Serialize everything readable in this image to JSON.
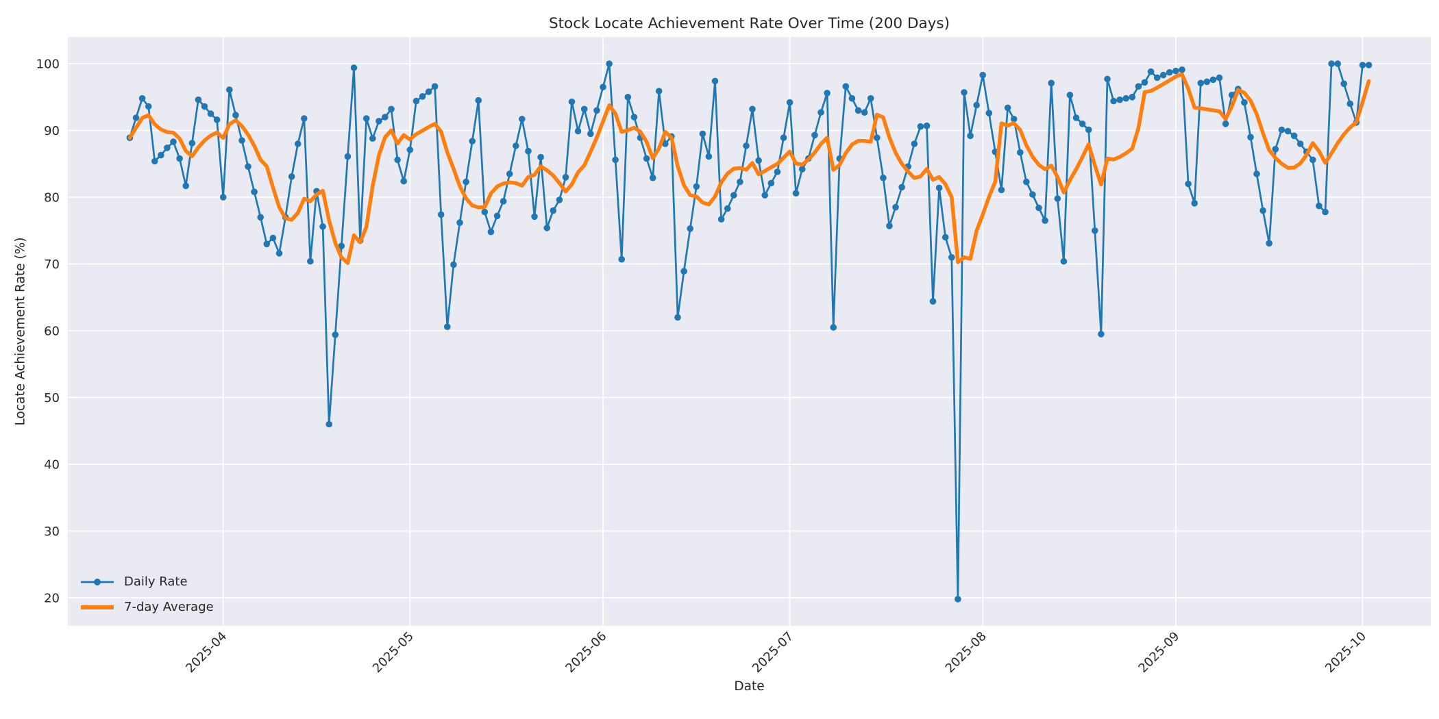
{
  "title": "Stock Locate Achievement Rate Over Time (200 Days)",
  "xlabel": "Date",
  "ylabel": "Locate Achievement Rate (%)",
  "legend": {
    "daily": "Daily Rate",
    "avg": "7-day Average"
  },
  "colors": {
    "daily": "#1f77b4",
    "avg": "#ff7f0e",
    "plot_bg": "#eaeaf2",
    "grid": "#ffffff",
    "text": "#262626",
    "fig_bg": "#ffffff"
  },
  "chart_data": {
    "type": "line",
    "title": "Stock Locate Achievement Rate Over Time (200 Days)",
    "xlabel": "Date",
    "ylabel": "Locate Achievement Rate (%)",
    "x_start_date": "2025-03-17",
    "n_days": 200,
    "ylim": [
      15.8,
      104.0
    ],
    "yticks": [
      20,
      30,
      40,
      50,
      60,
      70,
      80,
      90,
      100
    ],
    "xticks": [
      {
        "label": "2025-04",
        "day_index": 15
      },
      {
        "label": "2025-05",
        "day_index": 45
      },
      {
        "label": "2025-06",
        "day_index": 76
      },
      {
        "label": "2025-07",
        "day_index": 106
      },
      {
        "label": "2025-08",
        "day_index": 137
      },
      {
        "label": "2025-09",
        "day_index": 168
      },
      {
        "label": "2025-10",
        "day_index": 198
      }
    ],
    "grid": true,
    "legend_position": "lower left",
    "series": [
      {
        "name": "Daily Rate",
        "marker": "o",
        "values": [
          88.9,
          91.9,
          94.8,
          93.6,
          85.4,
          86.3,
          87.4,
          88.3,
          85.8,
          81.7,
          88.1,
          94.6,
          93.6,
          92.5,
          91.6,
          80.0,
          96.1,
          92.3,
          88.5,
          84.6,
          80.8,
          77.0,
          73.0,
          73.9,
          71.6,
          77.0,
          83.1,
          88.0,
          91.8,
          70.4,
          80.9,
          75.6,
          46.0,
          59.4,
          72.7,
          86.1,
          99.4,
          73.5,
          91.8,
          88.8,
          91.4,
          92.0,
          93.2,
          85.6,
          82.4,
          87.1,
          94.4,
          95.1,
          95.8,
          96.6,
          77.4,
          60.6,
          69.9,
          76.2,
          82.3,
          88.4,
          94.5,
          77.8,
          74.8,
          77.2,
          79.4,
          83.5,
          87.7,
          91.7,
          86.9,
          77.1,
          86.0,
          75.4,
          78.0,
          79.6,
          83.0,
          94.3,
          89.9,
          93.2,
          89.5,
          93.0,
          96.5,
          100.0,
          85.6,
          70.7,
          95.0,
          92.0,
          88.9,
          85.8,
          82.9,
          95.9,
          88.0,
          89.1,
          62.0,
          68.9,
          75.3,
          81.6,
          89.5,
          86.1,
          97.4,
          76.7,
          78.3,
          80.3,
          82.3,
          87.7,
          93.2,
          85.5,
          80.3,
          82.1,
          83.8,
          88.9,
          94.2,
          80.6,
          84.2,
          85.8,
          89.3,
          92.7,
          95.6,
          60.5,
          85.8,
          96.6,
          94.8,
          93.0,
          92.7,
          94.8,
          88.9,
          82.9,
          75.7,
          78.5,
          81.5,
          84.6,
          88.0,
          90.6,
          90.7,
          64.4,
          81.4,
          74.0,
          71.0,
          19.8,
          95.7,
          89.2,
          93.8,
          98.3,
          92.6,
          86.8,
          81.1,
          93.4,
          91.7,
          86.7,
          82.3,
          80.4,
          78.4,
          76.5,
          97.1,
          79.8,
          70.4,
          95.3,
          91.9,
          91.0,
          90.1,
          75.0,
          59.5,
          97.7,
          94.4,
          94.6,
          94.8,
          95.0,
          96.6,
          97.2,
          98.8,
          97.9,
          98.3,
          98.7,
          98.9,
          99.1,
          82.0,
          79.1,
          97.1,
          97.3,
          97.6,
          97.9,
          91.0,
          95.3,
          96.2,
          94.2,
          89.0,
          83.5,
          78.0,
          73.1,
          87.2,
          90.1,
          89.9,
          89.2,
          88.0,
          86.8,
          85.6,
          78.7,
          77.8,
          100.0,
          100.0,
          97.0,
          94.0,
          91.2,
          99.8,
          99.8
        ]
      },
      {
        "name": "7-day Average",
        "derived_from": "Daily Rate",
        "window": 7,
        "note": "rolling mean of Daily Rate, min_periods=1"
      }
    ]
  }
}
